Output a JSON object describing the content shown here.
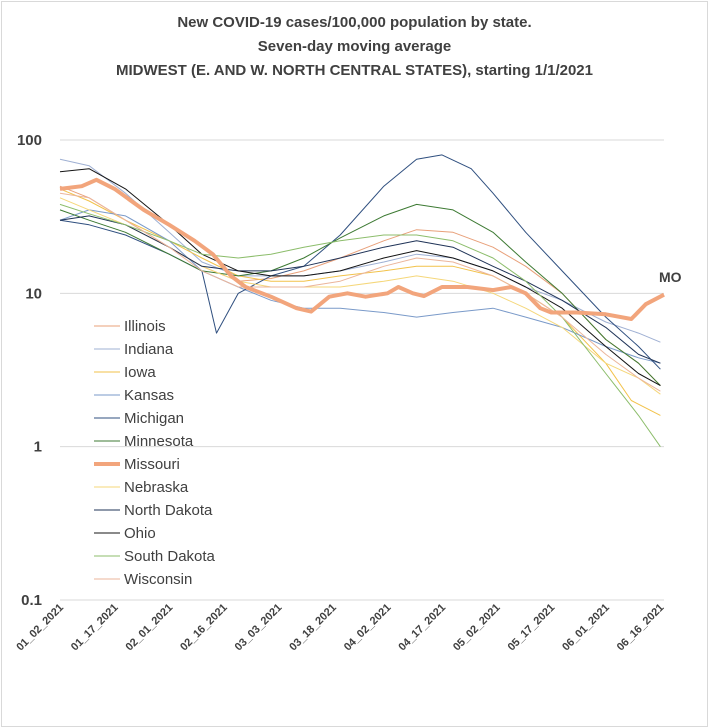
{
  "chart_data": {
    "type": "line",
    "title_lines": [
      "New COVID-19 cases/100,000 population by state.",
      "Seven-day moving average",
      "MIDWEST (E. AND W. NORTH CENTRAL STATES), starting 1/1/2021"
    ],
    "y_scale": "log",
    "ylim": [
      0.1,
      100
    ],
    "y_ticks": [
      "100",
      "10",
      "1",
      "0.1"
    ],
    "y_tick_values": [
      100,
      10,
      1,
      0.1
    ],
    "x_ticks": [
      "01_02_2021",
      "01_17_2021",
      "02_01_2021",
      "02_16_2021",
      "03_03_2021",
      "03_18_2021",
      "04_02_2021",
      "04_17_2021",
      "05_02_2021",
      "05_17_2021",
      "06_01_2021",
      "06_16_2021"
    ],
    "x_tick_dates": [
      "2021-01-02",
      "2021-01-17",
      "2021-02-01",
      "2021-02-16",
      "2021-03-03",
      "2021-03-18",
      "2021-04-02",
      "2021-04-17",
      "2021-05-02",
      "2021-05-17",
      "2021-06-01",
      "2021-06-16"
    ],
    "grid": "horizontal",
    "legend_position": "left-center",
    "annotation": "MO",
    "series": [
      {
        "name": "Illinois",
        "color": "#e8a07a",
        "width": 1,
        "points": [
          [
            "2021-01-02",
            50
          ],
          [
            "2021-01-10",
            42
          ],
          [
            "2021-01-20",
            30
          ],
          [
            "2021-02-01",
            20
          ],
          [
            "2021-02-10",
            15
          ],
          [
            "2021-02-20",
            12
          ],
          [
            "2021-03-01",
            12.5
          ],
          [
            "2021-03-10",
            14
          ],
          [
            "2021-03-20",
            17
          ],
          [
            "2021-04-01",
            22
          ],
          [
            "2021-04-10",
            26
          ],
          [
            "2021-04-20",
            25
          ],
          [
            "2021-05-01",
            20
          ],
          [
            "2021-05-10",
            15
          ],
          [
            "2021-05-20",
            10
          ],
          [
            "2021-06-01",
            5
          ],
          [
            "2021-06-10",
            3.5
          ],
          [
            "2021-06-16",
            2.5
          ]
        ]
      },
      {
        "name": "Indiana",
        "color": "#9fb0d3",
        "width": 1,
        "points": [
          [
            "2021-01-02",
            75
          ],
          [
            "2021-01-10",
            68
          ],
          [
            "2021-01-20",
            45
          ],
          [
            "2021-02-01",
            25
          ],
          [
            "2021-02-10",
            16
          ],
          [
            "2021-02-20",
            13
          ],
          [
            "2021-03-01",
            13
          ],
          [
            "2021-03-10",
            13
          ],
          [
            "2021-03-20",
            14
          ],
          [
            "2021-04-01",
            16
          ],
          [
            "2021-04-10",
            18
          ],
          [
            "2021-04-20",
            17
          ],
          [
            "2021-05-01",
            14
          ],
          [
            "2021-05-10",
            11
          ],
          [
            "2021-05-20",
            9
          ],
          [
            "2021-06-01",
            6.5
          ],
          [
            "2021-06-10",
            5.5
          ],
          [
            "2021-06-16",
            4.8
          ]
        ]
      },
      {
        "name": "Iowa",
        "color": "#f2c24a",
        "width": 1,
        "points": [
          [
            "2021-01-02",
            48
          ],
          [
            "2021-01-10",
            40
          ],
          [
            "2021-01-20",
            30
          ],
          [
            "2021-02-01",
            22
          ],
          [
            "2021-02-10",
            17
          ],
          [
            "2021-02-20",
            13
          ],
          [
            "2021-03-01",
            12
          ],
          [
            "2021-03-10",
            12
          ],
          [
            "2021-03-20",
            13
          ],
          [
            "2021-04-01",
            14
          ],
          [
            "2021-04-10",
            15
          ],
          [
            "2021-04-20",
            15
          ],
          [
            "2021-05-01",
            13
          ],
          [
            "2021-05-10",
            10
          ],
          [
            "2021-05-20",
            7
          ],
          [
            "2021-06-01",
            3.5
          ],
          [
            "2021-06-08",
            2
          ],
          [
            "2021-06-16",
            1.6
          ]
        ]
      },
      {
        "name": "Kansas",
        "color": "#7a9ac9",
        "width": 1,
        "points": [
          [
            "2021-01-02",
            30
          ],
          [
            "2021-01-10",
            35
          ],
          [
            "2021-01-20",
            32
          ],
          [
            "2021-02-01",
            22
          ],
          [
            "2021-02-10",
            14
          ],
          [
            "2021-02-20",
            11
          ],
          [
            "2021-03-01",
            9
          ],
          [
            "2021-03-10",
            8
          ],
          [
            "2021-03-20",
            8
          ],
          [
            "2021-04-01",
            7.5
          ],
          [
            "2021-04-10",
            7
          ],
          [
            "2021-04-20",
            7.5
          ],
          [
            "2021-05-01",
            8
          ],
          [
            "2021-05-10",
            7
          ],
          [
            "2021-05-20",
            6
          ],
          [
            "2021-06-01",
            4.5
          ],
          [
            "2021-06-10",
            3.8
          ],
          [
            "2021-06-16",
            3.5
          ]
        ]
      },
      {
        "name": "Michigan",
        "color": "#2f4f7f",
        "width": 1,
        "points": [
          [
            "2021-01-02",
            30
          ],
          [
            "2021-01-10",
            28
          ],
          [
            "2021-01-20",
            24
          ],
          [
            "2021-02-01",
            18
          ],
          [
            "2021-02-10",
            14
          ],
          [
            "2021-02-14",
            5.5
          ],
          [
            "2021-02-20",
            10
          ],
          [
            "2021-03-01",
            13
          ],
          [
            "2021-03-10",
            15
          ],
          [
            "2021-03-20",
            24
          ],
          [
            "2021-04-01",
            50
          ],
          [
            "2021-04-10",
            75
          ],
          [
            "2021-04-17",
            80
          ],
          [
            "2021-04-25",
            65
          ],
          [
            "2021-05-01",
            45
          ],
          [
            "2021-05-10",
            25
          ],
          [
            "2021-05-20",
            14
          ],
          [
            "2021-06-01",
            7
          ],
          [
            "2021-06-10",
            4.5
          ],
          [
            "2021-06-16",
            3.2
          ]
        ]
      },
      {
        "name": "Minnesota",
        "color": "#3d7a33",
        "width": 1,
        "points": [
          [
            "2021-01-02",
            35
          ],
          [
            "2021-01-10",
            30
          ],
          [
            "2021-01-20",
            25
          ],
          [
            "2021-02-01",
            18
          ],
          [
            "2021-02-10",
            14
          ],
          [
            "2021-02-20",
            13
          ],
          [
            "2021-03-01",
            14
          ],
          [
            "2021-03-10",
            17
          ],
          [
            "2021-03-20",
            23
          ],
          [
            "2021-04-01",
            32
          ],
          [
            "2021-04-10",
            38
          ],
          [
            "2021-04-20",
            35
          ],
          [
            "2021-05-01",
            25
          ],
          [
            "2021-05-10",
            16
          ],
          [
            "2021-05-20",
            10
          ],
          [
            "2021-06-01",
            5
          ],
          [
            "2021-06-10",
            3.5
          ],
          [
            "2021-06-16",
            2.5
          ]
        ]
      },
      {
        "name": "Missouri",
        "color": "#f2a57c",
        "width": 4,
        "points": [
          [
            "2021-01-02",
            48
          ],
          [
            "2021-01-08",
            50
          ],
          [
            "2021-01-12",
            55
          ],
          [
            "2021-01-17",
            48
          ],
          [
            "2021-01-25",
            35
          ],
          [
            "2021-02-01",
            28
          ],
          [
            "2021-02-08",
            22
          ],
          [
            "2021-02-13",
            18
          ],
          [
            "2021-02-18",
            13
          ],
          [
            "2021-02-22",
            11
          ],
          [
            "2021-03-01",
            9.5
          ],
          [
            "2021-03-08",
            8
          ],
          [
            "2021-03-12",
            7.6
          ],
          [
            "2021-03-17",
            9.5
          ],
          [
            "2021-03-22",
            10
          ],
          [
            "2021-03-27",
            9.5
          ],
          [
            "2021-04-02",
            10
          ],
          [
            "2021-04-05",
            11
          ],
          [
            "2021-04-09",
            10
          ],
          [
            "2021-04-12",
            9.6
          ],
          [
            "2021-04-17",
            11
          ],
          [
            "2021-04-24",
            11
          ],
          [
            "2021-05-01",
            10.5
          ],
          [
            "2021-05-06",
            11
          ],
          [
            "2021-05-10",
            10
          ],
          [
            "2021-05-14",
            8
          ],
          [
            "2021-05-17",
            7.5
          ],
          [
            "2021-05-24",
            7.5
          ],
          [
            "2021-06-01",
            7.3
          ],
          [
            "2021-06-08",
            6.8
          ],
          [
            "2021-06-12",
            8.5
          ],
          [
            "2021-06-17",
            9.8
          ]
        ]
      },
      {
        "name": "Nebraska",
        "color": "#f5d77a",
        "width": 1,
        "points": [
          [
            "2021-01-02",
            42
          ],
          [
            "2021-01-10",
            35
          ],
          [
            "2021-01-20",
            28
          ],
          [
            "2021-02-01",
            20
          ],
          [
            "2021-02-10",
            15
          ],
          [
            "2021-02-20",
            12
          ],
          [
            "2021-03-01",
            11
          ],
          [
            "2021-03-10",
            11
          ],
          [
            "2021-03-20",
            11
          ],
          [
            "2021-04-01",
            12
          ],
          [
            "2021-04-10",
            13
          ],
          [
            "2021-04-20",
            12
          ],
          [
            "2021-05-01",
            10
          ],
          [
            "2021-05-10",
            8
          ],
          [
            "2021-05-20",
            6
          ],
          [
            "2021-06-01",
            3.5
          ],
          [
            "2021-06-10",
            2.8
          ],
          [
            "2021-06-16",
            2.2
          ]
        ]
      },
      {
        "name": "North Dakota",
        "color": "#1f3357",
        "width": 1,
        "points": [
          [
            "2021-01-02",
            30
          ],
          [
            "2021-01-10",
            32
          ],
          [
            "2021-01-20",
            28
          ],
          [
            "2021-02-01",
            20
          ],
          [
            "2021-02-10",
            15
          ],
          [
            "2021-02-20",
            14
          ],
          [
            "2021-03-01",
            14
          ],
          [
            "2021-03-10",
            15
          ],
          [
            "2021-03-20",
            17
          ],
          [
            "2021-04-01",
            20
          ],
          [
            "2021-04-10",
            22
          ],
          [
            "2021-04-20",
            20
          ],
          [
            "2021-05-01",
            15
          ],
          [
            "2021-05-10",
            12
          ],
          [
            "2021-05-20",
            9
          ],
          [
            "2021-06-01",
            6
          ],
          [
            "2021-06-10",
            4
          ],
          [
            "2021-06-16",
            3.5
          ]
        ]
      },
      {
        "name": "Ohio",
        "color": "#141414",
        "width": 1,
        "points": [
          [
            "2021-01-02",
            62
          ],
          [
            "2021-01-10",
            65
          ],
          [
            "2021-01-20",
            48
          ],
          [
            "2021-02-01",
            28
          ],
          [
            "2021-02-10",
            18
          ],
          [
            "2021-02-20",
            14
          ],
          [
            "2021-03-01",
            13
          ],
          [
            "2021-03-10",
            13
          ],
          [
            "2021-03-20",
            14
          ],
          [
            "2021-04-01",
            17
          ],
          [
            "2021-04-10",
            19
          ],
          [
            "2021-04-20",
            17
          ],
          [
            "2021-05-01",
            14
          ],
          [
            "2021-05-10",
            11
          ],
          [
            "2021-05-20",
            8
          ],
          [
            "2021-06-01",
            4.5
          ],
          [
            "2021-06-10",
            3
          ],
          [
            "2021-06-16",
            2.5
          ]
        ]
      },
      {
        "name": "South Dakota",
        "color": "#8cbd6b",
        "width": 1,
        "points": [
          [
            "2021-01-02",
            38
          ],
          [
            "2021-01-10",
            33
          ],
          [
            "2021-01-20",
            28
          ],
          [
            "2021-02-01",
            22
          ],
          [
            "2021-02-10",
            18
          ],
          [
            "2021-02-20",
            17
          ],
          [
            "2021-03-01",
            18
          ],
          [
            "2021-03-10",
            20
          ],
          [
            "2021-03-20",
            22
          ],
          [
            "2021-04-01",
            24
          ],
          [
            "2021-04-10",
            24
          ],
          [
            "2021-04-20",
            22
          ],
          [
            "2021-05-01",
            17
          ],
          [
            "2021-05-10",
            12
          ],
          [
            "2021-05-20",
            7
          ],
          [
            "2021-06-01",
            3
          ],
          [
            "2021-06-10",
            1.6
          ],
          [
            "2021-06-16",
            1
          ]
        ]
      },
      {
        "name": "Wisconsin",
        "color": "#ebb59b",
        "width": 1,
        "points": [
          [
            "2021-01-02",
            45
          ],
          [
            "2021-01-10",
            42
          ],
          [
            "2021-01-20",
            30
          ],
          [
            "2021-02-01",
            20
          ],
          [
            "2021-02-10",
            14
          ],
          [
            "2021-02-20",
            11
          ],
          [
            "2021-03-01",
            11
          ],
          [
            "2021-03-10",
            11
          ],
          [
            "2021-03-20",
            12
          ],
          [
            "2021-04-01",
            15
          ],
          [
            "2021-04-10",
            17
          ],
          [
            "2021-04-20",
            16
          ],
          [
            "2021-05-01",
            13
          ],
          [
            "2021-05-10",
            10
          ],
          [
            "2021-05-20",
            7
          ],
          [
            "2021-06-01",
            4
          ],
          [
            "2021-06-10",
            2.8
          ],
          [
            "2021-06-16",
            2.3
          ]
        ]
      }
    ]
  }
}
